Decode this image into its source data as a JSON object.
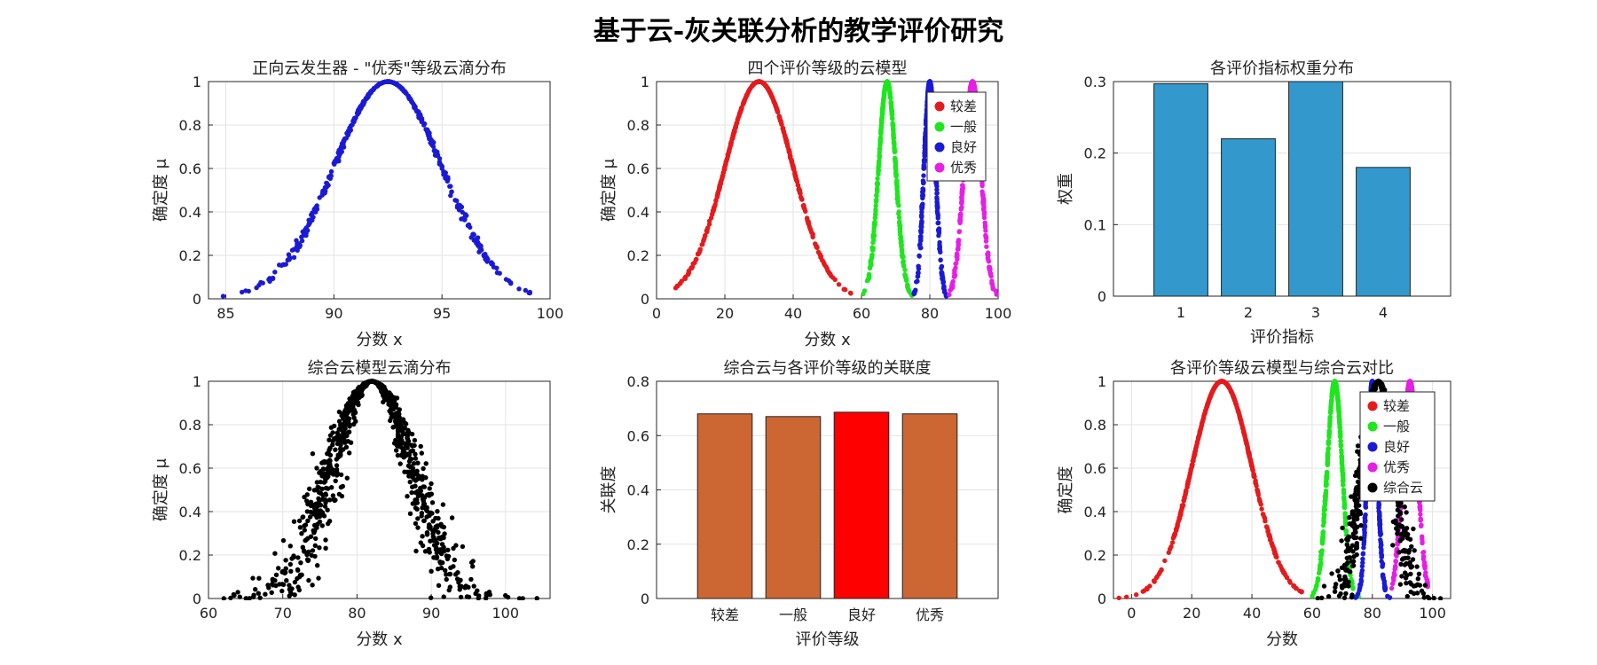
{
  "title": "基于云-灰关联分析的教学评价研究",
  "colors": {
    "poor": "#e41a1c",
    "fair": "#1ee61e",
    "good": "#1a1ad6",
    "excellent": "#e61ee6",
    "synthesis": "#000000",
    "excellent_drops": "#1a1ad6",
    "weight_bar": "#3399cc",
    "relevance_bar": "#cc6633",
    "relevance_highlight": "#ff0000"
  },
  "chart_data": [
    {
      "id": "p1",
      "type": "scatter",
      "title": "正向云发生器 - \"优秀\"等级云滴分布",
      "xlabel": "分数 x",
      "ylabel": "确定度 μ",
      "xlim": [
        84.2,
        100
      ],
      "ylim": [
        0,
        1
      ],
      "xticks": [
        85,
        90,
        95,
        100
      ],
      "yticks": [
        0,
        0.2,
        0.4,
        0.6,
        0.8,
        1
      ],
      "xticklabels": [
        "85",
        "90",
        "95",
        "100"
      ],
      "yticklabels": [
        "0",
        "0.2",
        "0.4",
        "0.6",
        "0.8",
        "1"
      ],
      "series": [
        {
          "name": "优秀",
          "Ex": 92.5,
          "En": 2.5,
          "He": 0.05,
          "n": 500,
          "color_key": "excellent_drops",
          "xrange": [
            84.3,
            99.2
          ]
        }
      ]
    },
    {
      "id": "p2",
      "type": "scatter",
      "title": "四个评价等级的云模型",
      "xlabel": "分数 x",
      "ylabel": "确定度 μ",
      "xlim": [
        0,
        100
      ],
      "ylim": [
        0,
        1
      ],
      "xticks": [
        0,
        20,
        40,
        60,
        80,
        100
      ],
      "yticks": [
        0,
        0.2,
        0.4,
        0.6,
        0.8,
        1
      ],
      "xticklabels": [
        "0",
        "20",
        "40",
        "60",
        "80",
        "100"
      ],
      "yticklabels": [
        "0",
        "0.2",
        "0.4",
        "0.6",
        "0.8",
        "1"
      ],
      "legend": {
        "position": "top-right",
        "entries": [
          "较差",
          "一般",
          "良好",
          "优秀"
        ]
      },
      "series": [
        {
          "name": "较差",
          "Ex": 30,
          "En": 10,
          "He": 0.05,
          "n": 500,
          "color_key": "poor",
          "xrange": [
            5,
            57
          ]
        },
        {
          "name": "一般",
          "Ex": 67.5,
          "En": 2.5,
          "He": 0.05,
          "n": 400,
          "color_key": "fair",
          "xrange": [
            60,
            75
          ]
        },
        {
          "name": "良好",
          "Ex": 80,
          "En": 1.7,
          "He": 0.05,
          "n": 400,
          "color_key": "good",
          "xrange": [
            75,
            85
          ]
        },
        {
          "name": "优秀",
          "Ex": 92.5,
          "En": 2.5,
          "He": 0.05,
          "n": 400,
          "color_key": "excellent",
          "xrange": [
            85,
            100
          ]
        }
      ]
    },
    {
      "id": "p3",
      "type": "bar",
      "title": "各评价指标权重分布",
      "xlabel": "评价指标",
      "ylabel": "权重",
      "categories": [
        "1",
        "2",
        "3",
        "4"
      ],
      "values": [
        0.297,
        0.22,
        0.302,
        0.18
      ],
      "ylim": [
        0,
        0.3
      ],
      "xlim": [
        0,
        5
      ],
      "yticks": [
        0,
        0.1,
        0.2,
        0.3
      ],
      "yticklabels": [
        "0",
        "0.1",
        "0.2",
        "0.3"
      ],
      "color_key": "weight_bar"
    },
    {
      "id": "p4",
      "type": "scatter",
      "title": "综合云模型云滴分布",
      "xlabel": "分数 x",
      "ylabel": "确定度 μ",
      "xlim": [
        60,
        106
      ],
      "ylim": [
        0,
        1
      ],
      "xticks": [
        60,
        70,
        80,
        90,
        100
      ],
      "yticks": [
        0,
        0.2,
        0.4,
        0.6,
        0.8,
        1
      ],
      "xticklabels": [
        "60",
        "70",
        "80",
        "90",
        "100"
      ],
      "yticklabels": [
        "0",
        "0.2",
        "0.4",
        "0.6",
        "0.8",
        "1"
      ],
      "series": [
        {
          "name": "综合云",
          "Ex": 82,
          "En": 5.5,
          "He": 0.9,
          "n": 1000,
          "color_key": "synthesis",
          "xrange": [
            60,
            106
          ]
        }
      ]
    },
    {
      "id": "p5",
      "type": "bar",
      "title": "综合云与各评价等级的关联度",
      "xlabel": "评价等级",
      "ylabel": "关联度",
      "categories": [
        "较差",
        "一般",
        "良好",
        "优秀"
      ],
      "values": [
        0.68,
        0.67,
        0.686,
        0.68
      ],
      "highlight_index": 2,
      "ylim": [
        0,
        0.8
      ],
      "xlim": [
        0,
        5
      ],
      "yticks": [
        0,
        0.2,
        0.4,
        0.6,
        0.8
      ],
      "yticklabels": [
        "0",
        "0.2",
        "0.4",
        "0.6",
        "0.8"
      ],
      "color_key": "relevance_bar",
      "highlight_color_key": "relevance_highlight"
    },
    {
      "id": "p6",
      "type": "scatter",
      "title": "各评价等级云模型与综合云对比",
      "xlabel": "分数",
      "ylabel": "确定度",
      "xlim": [
        -6,
        106
      ],
      "ylim": [
        0,
        1
      ],
      "xticks": [
        0,
        20,
        40,
        60,
        80,
        100
      ],
      "yticks": [
        0,
        0.2,
        0.4,
        0.6,
        0.8,
        1
      ],
      "xticklabels": [
        "0",
        "20",
        "40",
        "60",
        "80",
        "100"
      ],
      "yticklabels": [
        "0",
        "0.2",
        "0.4",
        "0.6",
        "0.8",
        "1"
      ],
      "legend": {
        "position": "top-right",
        "entries": [
          "较差",
          "一般",
          "良好",
          "优秀",
          "综合云"
        ]
      },
      "series": [
        {
          "name": "较差",
          "Ex": 30,
          "En": 10,
          "He": 0.05,
          "n": 500,
          "color_key": "poor",
          "xrange": [
            -5,
            57
          ]
        },
        {
          "name": "一般",
          "Ex": 67.5,
          "En": 2.5,
          "He": 0.05,
          "n": 400,
          "color_key": "fair",
          "xrange": [
            59,
            76
          ]
        },
        {
          "name": "良好",
          "Ex": 80,
          "En": 1.7,
          "He": 0.05,
          "n": 400,
          "color_key": "good",
          "xrange": [
            74,
            86
          ]
        },
        {
          "name": "优秀",
          "Ex": 92.5,
          "En": 2.5,
          "He": 0.05,
          "n": 400,
          "color_key": "excellent",
          "xrange": [
            86,
            99
          ]
        },
        {
          "name": "综合云",
          "Ex": 82,
          "En": 5.5,
          "He": 0.9,
          "n": 700,
          "color_key": "synthesis",
          "xrange": [
            60,
            106
          ]
        }
      ]
    }
  ]
}
